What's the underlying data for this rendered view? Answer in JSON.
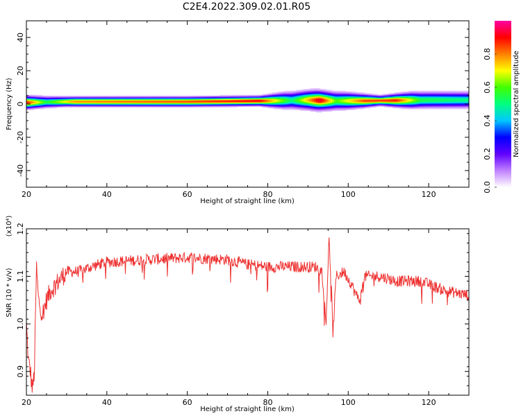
{
  "title": "C2E4.2022.309.02.01.R05",
  "chart_data": [
    {
      "type": "heatmap",
      "xlabel": "Height of straight line (km)",
      "ylabel": "Frequency (Hz)",
      "xlim": [
        20,
        130
      ],
      "ylim": [
        -50,
        50
      ],
      "x_ticks": [
        "20",
        "40",
        "60",
        "80",
        "100",
        "120"
      ],
      "y_ticks": [
        "-40",
        "-20",
        "0",
        "20",
        "40"
      ],
      "colorbar": {
        "label": "Normalized spectral amplitude",
        "range": [
          0.0,
          1.0
        ],
        "ticks": [
          "0.0",
          "0.2",
          "0.4",
          "0.6",
          "0.8"
        ],
        "colormap": [
          "#ffffff",
          "#c080ff",
          "#6000ff",
          "#0000ff",
          "#00c8ff",
          "#00ff80",
          "#40ff00",
          "#ffff00",
          "#ff8000",
          "#ff0000",
          "#ff00a0"
        ]
      },
      "band": {
        "center_hz": [
          [
            20,
            1
          ],
          [
            30,
            1.5
          ],
          [
            60,
            1.5
          ],
          [
            80,
            2
          ],
          [
            90,
            2.5
          ],
          [
            96,
            2
          ],
          [
            104,
            2
          ],
          [
            120,
            2.5
          ],
          [
            130,
            2.5
          ]
        ],
        "halfwidth_hz": [
          [
            20,
            4
          ],
          [
            30,
            3
          ],
          [
            60,
            3
          ],
          [
            78,
            3
          ],
          [
            84,
            5
          ],
          [
            92,
            6
          ],
          [
            100,
            5
          ],
          [
            108,
            3
          ],
          [
            116,
            5
          ],
          [
            130,
            5
          ]
        ],
        "peak": [
          [
            20,
            0.9
          ],
          [
            25,
            0.55
          ],
          [
            32,
            0.8
          ],
          [
            60,
            0.85
          ],
          [
            78,
            0.92
          ],
          [
            86,
            0.5
          ],
          [
            93,
            0.95
          ],
          [
            97,
            0.6
          ],
          [
            104,
            0.85
          ],
          [
            112,
            0.88
          ],
          [
            118,
            0.55
          ],
          [
            130,
            0.5
          ]
        ]
      }
    },
    {
      "type": "line",
      "xlabel": "Height of straight line (km)",
      "ylabel": "SNR (10 * v/v)",
      "y_multiplier": "(x10⁴)",
      "xlim": [
        20,
        130
      ],
      "ylim": [
        0.85,
        1.2
      ],
      "x_ticks": [
        "20",
        "40",
        "60",
        "80",
        "100",
        "120"
      ],
      "y_ticks": [
        "0.9",
        "1.0",
        "1.1",
        "1.2"
      ],
      "color": "#ee3030",
      "trend": [
        [
          20,
          1.0
        ],
        [
          20.5,
          0.92
        ],
        [
          21,
          0.9
        ],
        [
          21.5,
          0.86
        ],
        [
          22,
          0.9
        ],
        [
          22.5,
          1.12
        ],
        [
          23,
          1.05
        ],
        [
          24,
          1.02
        ],
        [
          25,
          1.05
        ],
        [
          26,
          1.07
        ],
        [
          27,
          1.08
        ],
        [
          28,
          1.09
        ],
        [
          30,
          1.11
        ],
        [
          33,
          1.11
        ],
        [
          36,
          1.12
        ],
        [
          40,
          1.13
        ],
        [
          50,
          1.135
        ],
        [
          60,
          1.14
        ],
        [
          70,
          1.135
        ],
        [
          75,
          1.125
        ],
        [
          80,
          1.12
        ],
        [
          85,
          1.12
        ],
        [
          88,
          1.12
        ],
        [
          92,
          1.12
        ],
        [
          93.5,
          1.11
        ],
        [
          94.5,
          1.0
        ],
        [
          95.2,
          1.18
        ],
        [
          95.8,
          1.08
        ],
        [
          96.2,
          0.98
        ],
        [
          97,
          1.1
        ],
        [
          99,
          1.11
        ],
        [
          101,
          1.08
        ],
        [
          102,
          1.06
        ],
        [
          103,
          1.05
        ],
        [
          104,
          1.1
        ],
        [
          108,
          1.1
        ],
        [
          112,
          1.09
        ],
        [
          118,
          1.09
        ],
        [
          124,
          1.07
        ],
        [
          130,
          1.06
        ]
      ],
      "noise_amplitude": 0.012
    }
  ]
}
